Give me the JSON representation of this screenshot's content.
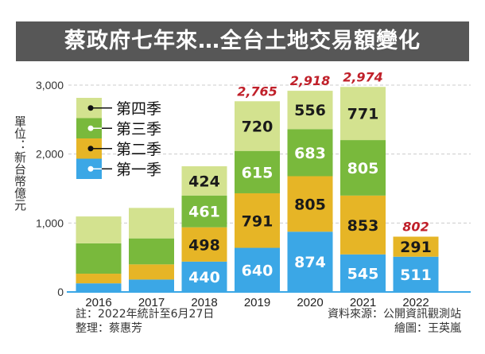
{
  "title": "蔡政府七年來…全台土地交易額變化",
  "ylabel": "單位：新台幣億元",
  "notes": {
    "note": "註：2022年統計至6月27日",
    "compiler": "整理：蔡惠芳",
    "source": "資料來源：公開資訊觀測站",
    "illustrator": "繪圖：王英嵐"
  },
  "chart_data": {
    "type": "bar",
    "stacked": true,
    "categories": [
      "2016",
      "2017",
      "2018",
      "2019",
      "2020",
      "2021",
      "2022"
    ],
    "series": [
      {
        "name": "第一季",
        "color": "#3ba7e6",
        "values": [
          125,
          180,
          440,
          640,
          874,
          545,
          511
        ],
        "labeled": [
          false,
          false,
          true,
          true,
          true,
          true,
          true
        ],
        "label_color": "#ffffff"
      },
      {
        "name": "第二季",
        "color": "#e6b526",
        "values": [
          140,
          220,
          498,
          791,
          805,
          853,
          291
        ],
        "labeled": [
          false,
          false,
          true,
          true,
          true,
          true,
          true
        ],
        "label_color": "#1a1a1a"
      },
      {
        "name": "第三季",
        "color": "#79b93c",
        "values": [
          440,
          377,
          461,
          615,
          683,
          805,
          0
        ],
        "labeled": [
          false,
          false,
          true,
          true,
          true,
          true,
          false
        ],
        "label_color": "#ffffff"
      },
      {
        "name": "第四季",
        "color": "#d3e28f",
        "values": [
          390,
          442,
          424,
          720,
          556,
          771,
          0
        ],
        "labeled": [
          false,
          false,
          true,
          true,
          true,
          true,
          false
        ],
        "label_color": "#1a1a1a"
      }
    ],
    "totals": [
      "",
      "",
      "",
      "2,765",
      "2,918",
      "2,974",
      "802"
    ],
    "total_color": "#c0202a",
    "yticks": [
      "0",
      "1,000",
      "2,000",
      "3,000"
    ],
    "ylim": [
      0,
      3000
    ],
    "grid": true,
    "legend_position": "top-left"
  }
}
